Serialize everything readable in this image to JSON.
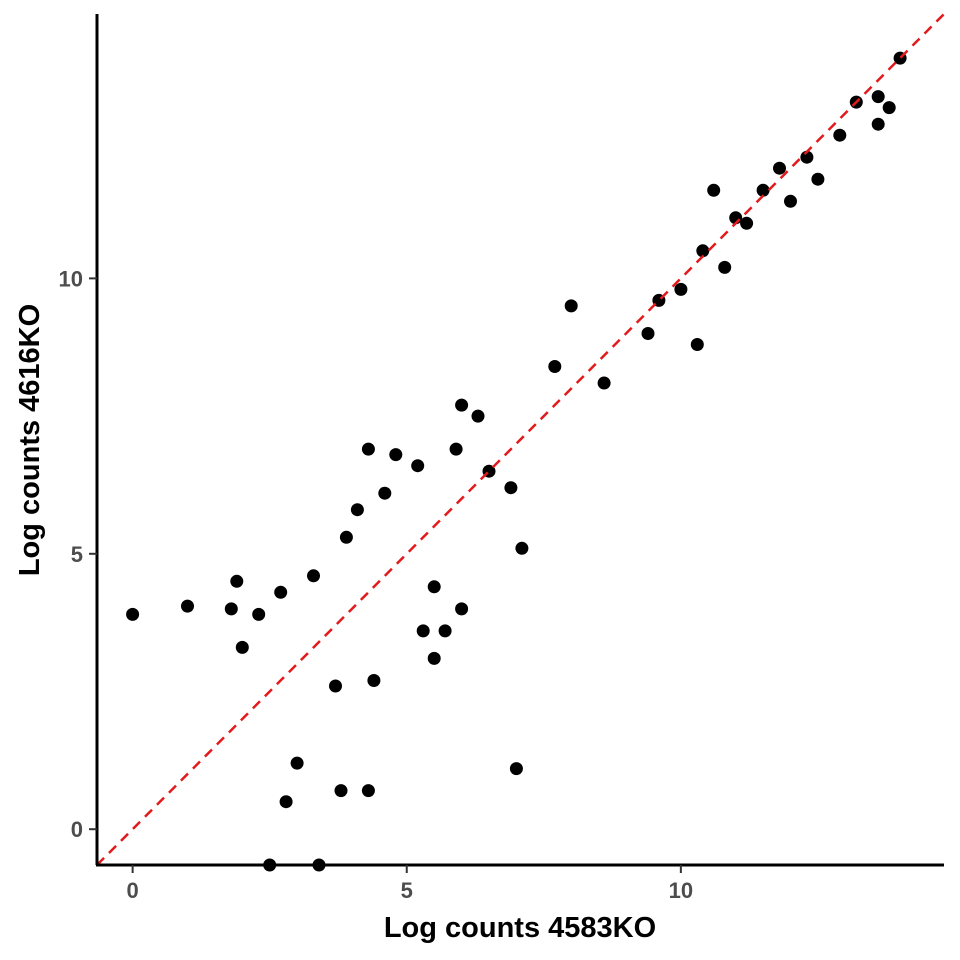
{
  "chart_data": {
    "type": "scatter",
    "title": "",
    "xlabel": "Log counts 4583KO",
    "ylabel": "Log counts 4616KO",
    "xlim": [
      -0.65,
      14.8
    ],
    "ylim": [
      -0.65,
      14.8
    ],
    "x_ticks": [
      0,
      5,
      10
    ],
    "y_ticks": [
      0,
      5,
      10
    ],
    "x_tick_labels": [
      "0",
      "5",
      "10"
    ],
    "y_tick_labels": [
      "0",
      "5",
      "10"
    ],
    "grid": false,
    "legend": "none",
    "point_color": "#000000",
    "reference_line": {
      "slope": 1,
      "intercept": 0,
      "style": "dashed",
      "color": "#e31a1c"
    },
    "series": [
      {
        "points": [
          [
            14.0,
            14.0
          ],
          [
            13.2,
            13.2
          ],
          [
            13.6,
            13.3
          ],
          [
            13.8,
            13.1
          ],
          [
            13.6,
            12.8
          ],
          [
            12.9,
            12.6
          ],
          [
            11.8,
            12.0
          ],
          [
            12.3,
            12.2
          ],
          [
            12.5,
            11.8
          ],
          [
            11.5,
            11.6
          ],
          [
            10.6,
            11.6
          ],
          [
            12.0,
            11.4
          ],
          [
            11.0,
            11.1
          ],
          [
            10.4,
            10.5
          ],
          [
            10.0,
            9.8
          ],
          [
            9.6,
            9.6
          ],
          [
            10.8,
            10.2
          ],
          [
            11.2,
            11.0
          ],
          [
            0,
            3.9
          ],
          [
            1.0,
            4.05
          ],
          [
            1.9,
            4.5
          ],
          [
            1.8,
            4.0
          ],
          [
            4.3,
            6.9
          ],
          [
            4.8,
            6.8
          ],
          [
            5.9,
            6.9
          ],
          [
            6.0,
            7.7
          ],
          [
            6.3,
            7.5
          ],
          [
            7.7,
            8.4
          ],
          [
            8.0,
            9.5
          ],
          [
            7.0,
            1.1
          ],
          [
            6.9,
            6.2
          ],
          [
            6.5,
            6.5
          ],
          [
            5.5,
            4.4
          ],
          [
            5.3,
            3.6
          ],
          [
            5.7,
            3.6
          ],
          [
            3.8,
            0.7
          ],
          [
            4.3,
            0.7
          ],
          [
            2.8,
            0.5
          ],
          [
            3.4,
            -0.65
          ],
          [
            2.5,
            -0.65
          ],
          [
            3.0,
            1.2
          ],
          [
            3.7,
            2.6
          ],
          [
            4.4,
            2.7
          ],
          [
            5.5,
            3.1
          ],
          [
            6.0,
            4.0
          ],
          [
            7.1,
            5.1
          ],
          [
            8.6,
            8.1
          ],
          [
            9.4,
            9.0
          ],
          [
            10.3,
            8.8
          ],
          [
            2.0,
            3.3
          ],
          [
            2.3,
            3.9
          ],
          [
            2.7,
            4.3
          ],
          [
            3.3,
            4.6
          ],
          [
            3.9,
            5.3
          ],
          [
            4.1,
            5.8
          ],
          [
            4.6,
            6.1
          ],
          [
            5.2,
            6.6
          ]
        ]
      }
    ]
  }
}
